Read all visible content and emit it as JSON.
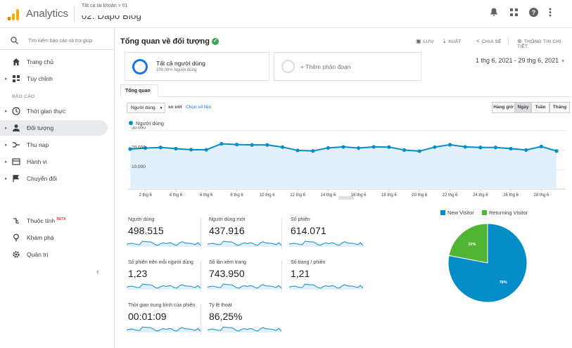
{
  "app": {
    "name": "Analytics"
  },
  "account": {
    "breadcrumb": "Tất cả tài khoản > 01",
    "property": "02. Dapo Blog"
  },
  "sidebar": {
    "search_placeholder": "Tìm kiếm báo cáo và trợ giúp",
    "items_top": [
      {
        "label": "Trang chủ",
        "icon": "home-icon"
      },
      {
        "label": "Tùy chỉnh",
        "icon": "dashboard-icon"
      }
    ],
    "section_label": "BÁO CÁO",
    "reports": [
      {
        "label": "Thời gian thực",
        "icon": "clock-icon"
      },
      {
        "label": "Đối tượng",
        "icon": "person-icon"
      },
      {
        "label": "Thu nạp",
        "icon": "acquisition-icon"
      },
      {
        "label": "Hành vi",
        "icon": "behavior-icon"
      },
      {
        "label": "Chuyển đổi",
        "icon": "flag-icon"
      }
    ],
    "bottom": [
      {
        "label": "Thuộc tính",
        "badge": "BETA",
        "icon": "attribution-icon"
      },
      {
        "label": "Khám phá",
        "icon": "lightbulb-icon"
      },
      {
        "label": "Quản trị",
        "icon": "gear-icon"
      }
    ]
  },
  "header": {
    "title": "Tổng quan về đối tượng",
    "actions": {
      "save": "LƯU",
      "export": "XUẤT",
      "share": "CHIA SẺ",
      "insights": "THÔNG TIN CHI TIẾT"
    }
  },
  "segments": {
    "all_users": "Tất cả người dùng",
    "all_users_sub": "100,00% Người dùng",
    "add_segment": "+ Thêm phân đoạn"
  },
  "date_range": "1 thg 6, 2021 - 29 thg 6, 2021",
  "tab": "Tổng quan",
  "controls": {
    "metric": "Người dùng",
    "vs": "so với",
    "pick_metric": "Chọn số liệu",
    "granularity": [
      "Hàng giờ",
      "Ngày",
      "Tuần",
      "Tháng"
    ],
    "granularity_selected": "Ngày"
  },
  "chart_data": {
    "type": "area",
    "series": [
      {
        "name": "Người dùng",
        "values": [
          20500,
          21000,
          21300,
          20700,
          20200,
          20100,
          23200,
          22800,
          22600,
          22600,
          21500,
          19800,
          19500,
          21100,
          21600,
          21000,
          21600,
          21500,
          20000,
          19400,
          21500,
          22700,
          21600,
          21300,
          21300,
          20700,
          20000,
          21800,
          19500
        ]
      }
    ],
    "x_tick_labels": [
      "2 thg 6",
      "4 thg 6",
      "6 thg 6",
      "8 thg 6",
      "10 thg 6",
      "12 thg 6",
      "14 thg 6",
      "16 thg 6",
      "18 thg 6",
      "20 thg 6",
      "22 thg 6",
      "24 thg 6",
      "26 thg 6",
      "28 thg 6"
    ],
    "y_tick_labels": [
      "30.000",
      "20.000",
      "10.000"
    ],
    "ylim": [
      0,
      32000
    ],
    "color": "#058dc7",
    "fill": "#e1f0fb"
  },
  "scorecards": [
    {
      "label": "Người dùng",
      "value": "498.515"
    },
    {
      "label": "Người dùng mới",
      "value": "437.916"
    },
    {
      "label": "Số phiên",
      "value": "614.071"
    },
    {
      "label": "Số phiên trên mỗi người dùng",
      "value": "1,23"
    },
    {
      "label": "Số lần xem trang",
      "value": "743.950"
    },
    {
      "label": "Số trang / phiên",
      "value": "1,21"
    },
    {
      "label": "Thời gian trung bình của phiên",
      "value": "00:01:09"
    },
    {
      "label": "Tỷ lệ thoát",
      "value": "86,25%"
    }
  ],
  "pie_chart": {
    "type": "pie",
    "series": [
      {
        "name": "New Visitor",
        "value": 78,
        "label": "78%",
        "color": "#058dc7"
      },
      {
        "name": "Returning Visitor",
        "value": 22,
        "label": "22%",
        "color": "#50b432"
      }
    ]
  }
}
